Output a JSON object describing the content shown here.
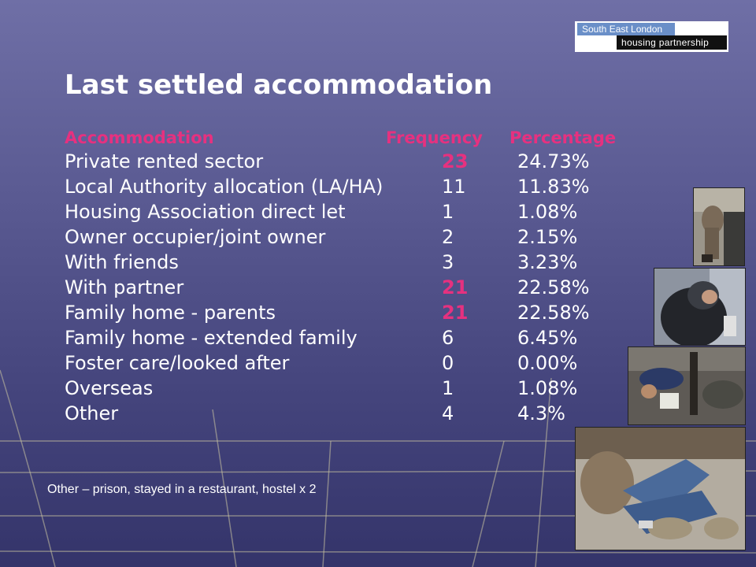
{
  "logo": {
    "line1": "South East London",
    "line2": "housing partnership"
  },
  "title": "Last settled accommodation",
  "table": {
    "headers": [
      "Accommodation",
      "Frequency",
      "Percentage"
    ],
    "rows": [
      {
        "label": "Private rented sector",
        "freq": "23",
        "pct": "24.73%",
        "highlight": true
      },
      {
        "label": "Local Authority allocation (LA/HA)",
        "freq": "11",
        "pct": "11.83%",
        "highlight": false
      },
      {
        "label": "Housing Association direct let",
        "freq": "1",
        "pct": "1.08%",
        "highlight": false
      },
      {
        "label": "Owner occupier/joint owner",
        "freq": "2",
        "pct": "2.15%",
        "highlight": false
      },
      {
        "label": "With friends",
        "freq": "3",
        "pct": "3.23%",
        "highlight": false
      },
      {
        "label": "With partner",
        "freq": "21",
        "pct": "22.58%",
        "highlight": true
      },
      {
        "label": "Family home - parents",
        "freq": "21",
        "pct": "22.58%",
        "highlight": true
      },
      {
        "label": "Family home - extended family",
        "freq": "6",
        "pct": "6.45%",
        "highlight": false
      },
      {
        "label": "Foster care/looked after",
        "freq": "0",
        "pct": "0.00%",
        "highlight": false
      },
      {
        "label": "Overseas",
        "freq": "1",
        "pct": "1.08%",
        "highlight": false
      },
      {
        "label": "Other",
        "freq": "4",
        "pct": "4.3%",
        "highlight": false
      }
    ]
  },
  "footnote": "Other – prison, stayed in a restaurant, hostel x 2",
  "colors": {
    "accent": "#e6317f",
    "text": "#ffffff",
    "background": "#55558d"
  },
  "images": [
    "photo-person-bins",
    "photo-person-hooded",
    "photo-person-street",
    "photo-person-lying"
  ]
}
